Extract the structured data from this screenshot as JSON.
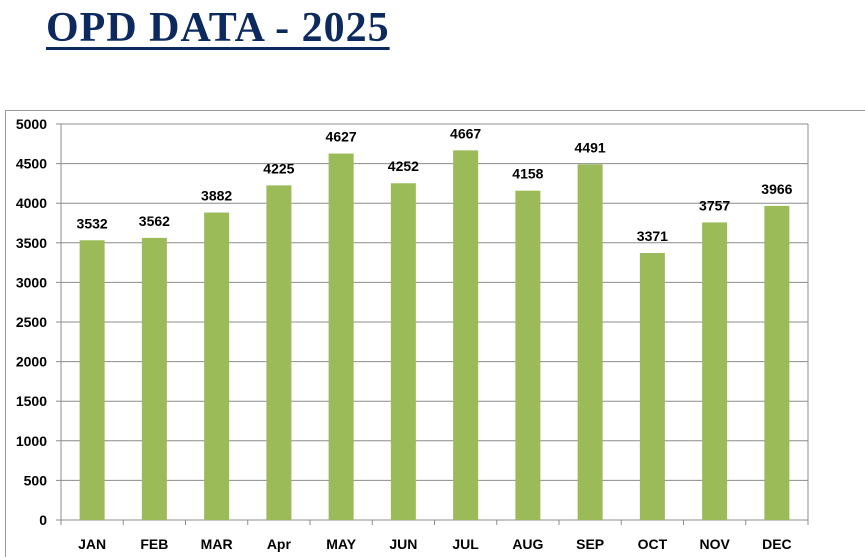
{
  "title": "OPD DATA - 2025",
  "chart_data": {
    "type": "bar",
    "title": "",
    "xlabel": "",
    "ylabel": "",
    "categories": [
      "JAN",
      "FEB",
      "MAR",
      "Apr",
      "MAY",
      "JUN",
      "JUL",
      "AUG",
      "SEP",
      "OCT",
      "NOV",
      "DEC"
    ],
    "values": [
      3532,
      3562,
      3882,
      4225,
      4627,
      4252,
      4667,
      4158,
      4491,
      3371,
      3757,
      3966
    ],
    "ylim": [
      0,
      5000
    ],
    "yticks": [
      0,
      500,
      1000,
      1500,
      2000,
      2500,
      3000,
      3500,
      4000,
      4500,
      5000
    ],
    "grid": true,
    "legend": "none",
    "data_labels": true,
    "bar_color": "#9bbb59",
    "grid_color": "#8c8c8c"
  }
}
